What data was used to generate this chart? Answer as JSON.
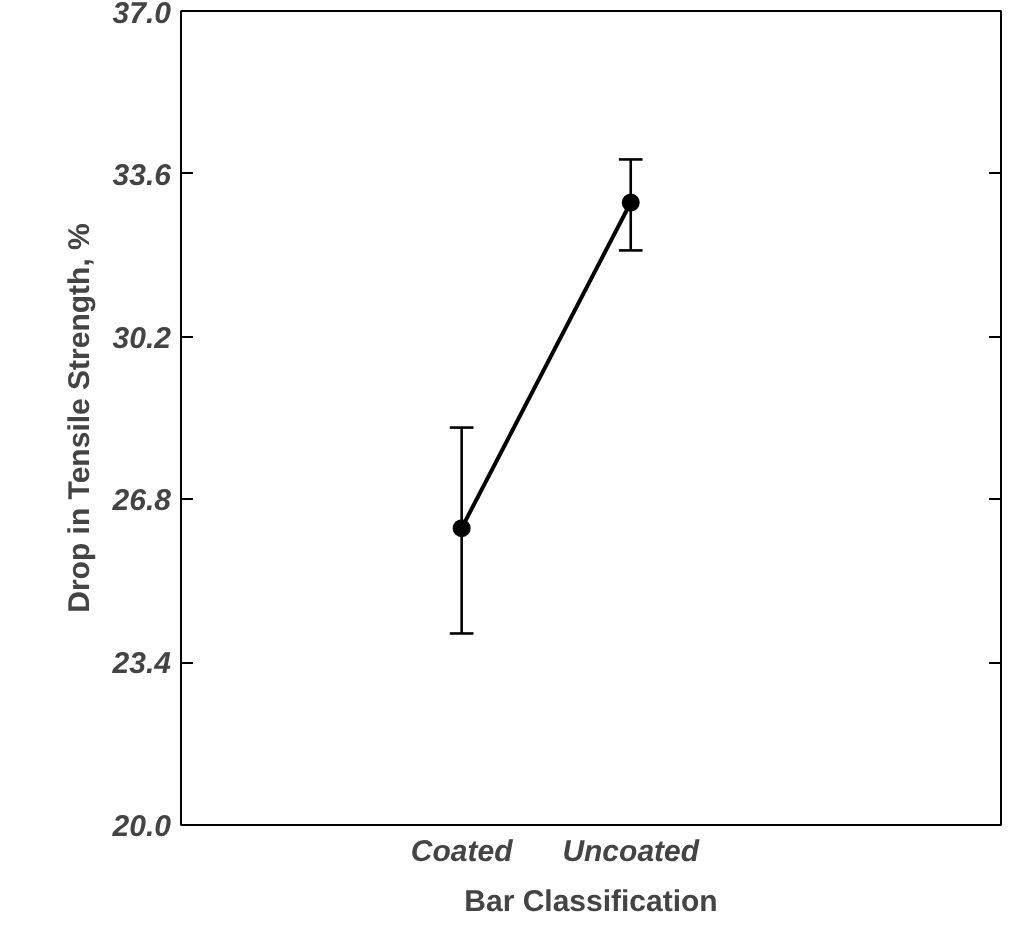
{
  "chart_data": {
    "type": "line",
    "xlabel": "Bar Classification",
    "ylabel": "Drop in Tensile Strength, %",
    "categories": [
      "Coated",
      "Uncoated"
    ],
    "series": [
      {
        "color": "#000000",
        "values": [
          26.2,
          33.0
        ],
        "errors": [
          [
            24.0,
            28.3
          ],
          [
            32.0,
            33.9
          ]
        ]
      }
    ],
    "ylim": [
      20,
      37
    ],
    "yticks": [
      {
        "value": 20,
        "label": "20.0"
      },
      {
        "value": 23.4,
        "label": "23.4"
      },
      {
        "value": 26.8,
        "label": "26.8"
      },
      {
        "value": 30.2,
        "label": "30.2"
      },
      {
        "value": 33.6,
        "label": "33.6"
      },
      {
        "value": 37,
        "label": "37.0"
      }
    ],
    "grid": false,
    "marker": "circle",
    "line_style": "solid"
  }
}
